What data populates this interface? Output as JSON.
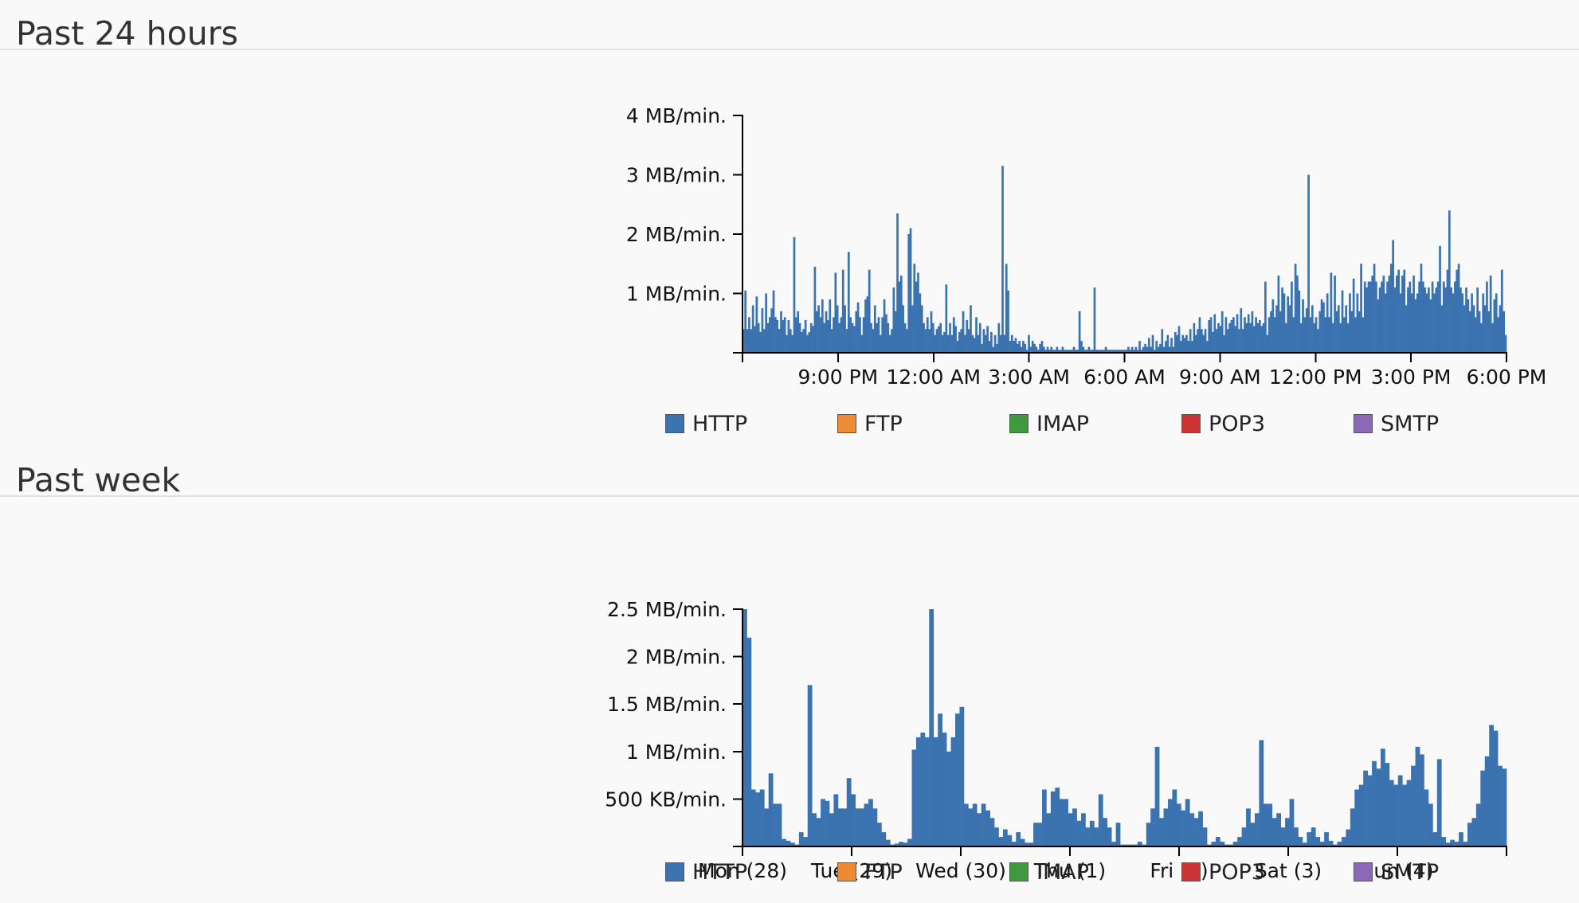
{
  "sections": [
    {
      "title": "Past 24 hours"
    },
    {
      "title": "Past week"
    }
  ],
  "legend": [
    {
      "label": "HTTP",
      "color": "#3a73b0"
    },
    {
      "label": "FTP",
      "color": "#ef8a34"
    },
    {
      "label": "IMAP",
      "color": "#3f9a3d"
    },
    {
      "label": "POP3",
      "color": "#cc3333"
    },
    {
      "label": "SMTP",
      "color": "#8c68b8"
    }
  ],
  "chart_data": [
    {
      "type": "bar",
      "title": "Past 24 hours",
      "xlabel": "",
      "ylabel": "",
      "unit": "MB/min.",
      "ylim": [
        0,
        4
      ],
      "yticks": [
        {
          "value": 1,
          "label": "1 MB/min."
        },
        {
          "value": 2,
          "label": "2 MB/min."
        },
        {
          "value": 3,
          "label": "3 MB/min."
        },
        {
          "value": 4,
          "label": "4 MB/min."
        }
      ],
      "xlim": [
        0,
        24
      ],
      "xticks": [
        {
          "value": 3,
          "label": "9:00 PM"
        },
        {
          "value": 6,
          "label": "12:00 AM"
        },
        {
          "value": 9,
          "label": "3:00 AM"
        },
        {
          "value": 12,
          "label": "6:00 AM"
        },
        {
          "value": 15,
          "label": "9:00 AM"
        },
        {
          "value": 18,
          "label": "12:00 PM"
        },
        {
          "value": 21,
          "label": "3:00 PM"
        },
        {
          "value": 24,
          "label": "6:00 PM"
        }
      ],
      "series": [
        {
          "name": "HTTP",
          "color": "#3a73b0",
          "values": [
            0.4,
            1.05,
            0.4,
            0.6,
            0.4,
            0.8,
            0.45,
            0.95,
            0.5,
            0.35,
            0.75,
            0.4,
            1.0,
            0.5,
            0.6,
            0.75,
            1.05,
            0.6,
            0.55,
            0.4,
            0.7,
            0.55,
            0.6,
            0.3,
            0.55,
            0.4,
            0.3,
            1.95,
            0.6,
            0.7,
            0.5,
            0.35,
            0.4,
            0.55,
            0.3,
            0.35,
            0.5,
            0.45,
            1.45,
            0.7,
            0.8,
            0.6,
            0.9,
            0.5,
            0.7,
            0.55,
            0.9,
            0.4,
            0.6,
            1.35,
            0.8,
            0.5,
            0.6,
            1.4,
            0.8,
            0.4,
            1.7,
            0.6,
            0.5,
            0.45,
            0.7,
            0.85,
            0.6,
            0.3,
            0.6,
            0.9,
            0.95,
            1.4,
            0.5,
            0.4,
            0.8,
            0.5,
            0.6,
            0.3,
            0.6,
            0.9,
            0.65,
            0.5,
            0.3,
            0.4,
            1.1,
            0.7,
            2.35,
            1.2,
            1.3,
            0.8,
            0.5,
            0.4,
            2.0,
            2.1,
            0.8,
            1.5,
            1.2,
            1.35,
            1.0,
            0.8,
            0.5,
            0.4,
            0.6,
            0.4,
            0.7,
            0.5,
            0.3,
            0.4,
            0.45,
            0.5,
            0.3,
            0.35,
            1.15,
            0.3,
            0.5,
            0.3,
            0.6,
            0.45,
            0.2,
            0.35,
            0.4,
            0.7,
            0.3,
            0.55,
            0.4,
            0.8,
            0.3,
            0.25,
            0.6,
            0.3,
            0.5,
            0.15,
            0.4,
            0.3,
            0.45,
            0.2,
            0.35,
            0.1,
            0.3,
            0.15,
            0.5,
            0.3,
            3.15,
            0.3,
            1.5,
            1.05,
            0.2,
            0.3,
            0.2,
            0.25,
            0.15,
            0.2,
            0.1,
            0.2,
            0.15,
            0.05,
            0.3,
            0.1,
            0.2,
            0.15,
            0.1,
            0.05,
            0.15,
            0.2,
            0.1,
            0.05,
            0.1,
            0.05,
            0.1,
            0.05,
            0.05,
            0.1,
            0.05,
            0.05,
            0.1,
            0.05,
            0.05,
            0.05,
            0.05,
            0.05,
            0.1,
            0.05,
            0.05,
            0.7,
            0.2,
            0.1,
            0.05,
            0.05,
            0.1,
            0.05,
            0.05,
            1.1,
            0.05,
            0.05,
            0.05,
            0.05,
            0.05,
            0.1,
            0.05,
            0.05,
            0.05,
            0.05,
            0.05,
            0.05,
            0.05,
            0.05,
            0.05,
            0.05,
            0.05,
            0.1,
            0.05,
            0.1,
            0.05,
            0.1,
            0.05,
            0.2,
            0.05,
            0.1,
            0.15,
            0.1,
            0.25,
            0.1,
            0.3,
            0.05,
            0.2,
            0.1,
            0.15,
            0.4,
            0.1,
            0.2,
            0.3,
            0.1,
            0.25,
            0.1,
            0.35,
            0.3,
            0.45,
            0.2,
            0.3,
            0.25,
            0.3,
            0.2,
            0.4,
            0.2,
            0.5,
            0.3,
            0.4,
            0.6,
            0.4,
            0.3,
            0.4,
            0.2,
            0.55,
            0.6,
            0.35,
            0.65,
            0.4,
            0.5,
            0.45,
            0.7,
            0.3,
            0.6,
            0.4,
            0.5,
            0.55,
            0.6,
            0.45,
            0.65,
            0.4,
            0.75,
            0.4,
            0.6,
            0.5,
            0.65,
            0.5,
            0.7,
            0.45,
            0.6,
            0.5,
            0.55,
            0.45,
            0.5,
            1.2,
            0.3,
            0.6,
            0.7,
            0.9,
            0.6,
            0.8,
            1.3,
            0.7,
            1.1,
            1.0,
            0.5,
            0.95,
            0.8,
            1.2,
            0.6,
            1.5,
            1.3,
            1.05,
            0.5,
            0.9,
            0.6,
            0.75,
            3.0,
            0.6,
            0.8,
            0.5,
            0.6,
            0.4,
            0.7,
            0.9,
            0.85,
            0.6,
            1.0,
            0.6,
            1.35,
            0.5,
            1.3,
            0.7,
            0.8,
            0.5,
            1.05,
            0.6,
            0.8,
            0.5,
            1.0,
            0.7,
            1.25,
            0.6,
            1.0,
            0.7,
            1.5,
            0.6,
            1.2,
            1.1,
            1.2,
            1.2,
            1.3,
            1.5,
            1.2,
            0.9,
            1.1,
            1.2,
            1.3,
            1.0,
            1.2,
            1.3,
            1.5,
            1.9,
            1.1,
            1.3,
            1.4,
            1.0,
            1.3,
            1.4,
            0.8,
            1.1,
            1.2,
            1.0,
            1.3,
            0.9,
            1.0,
            1.2,
            1.5,
            1.2,
            1.1,
            1.0,
            1.1,
            0.9,
            1.2,
            1.0,
            1.1,
            1.2,
            1.8,
            0.8,
            1.2,
            1.1,
            1.4,
            2.4,
            1.1,
            1.0,
            1.2,
            1.4,
            1.5,
            1.1,
            1.0,
            0.8,
            1.1,
            0.9,
            0.7,
            1.0,
            0.8,
            0.6,
            1.1,
            0.7,
            0.5,
            1.0,
            0.8,
            1.2,
            0.7,
            1.3,
            0.5,
            0.9,
            1.0,
            0.6,
            0.8,
            1.4,
            0.7,
            0.3
          ]
        }
      ]
    },
    {
      "type": "bar",
      "title": "Past week",
      "xlabel": "",
      "ylabel": "",
      "unit": "MB/min.",
      "ylim": [
        0,
        2.5
      ],
      "yticks": [
        {
          "value": 0.5,
          "label": "500 KB/min."
        },
        {
          "value": 1,
          "label": "1 MB/min."
        },
        {
          "value": 1.5,
          "label": "1.5 MB/min."
        },
        {
          "value": 2,
          "label": "2 MB/min."
        },
        {
          "value": 2.5,
          "label": "2.5 MB/min."
        }
      ],
      "xlim": [
        0,
        7
      ],
      "xticks": [
        {
          "value": 0,
          "label": "Mon (28)"
        },
        {
          "value": 1,
          "label": "Tue (29)"
        },
        {
          "value": 2,
          "label": "Wed (30)"
        },
        {
          "value": 3,
          "label": "Thu (1)"
        },
        {
          "value": 4,
          "label": "Fri (2)"
        },
        {
          "value": 5,
          "label": "Sat (3)"
        },
        {
          "value": 6,
          "label": "Sun (4)"
        },
        {
          "value": 7,
          "label": ""
        }
      ],
      "series": [
        {
          "name": "HTTP",
          "color": "#3a73b0",
          "values": [
            2.5,
            2.2,
            0.6,
            0.57,
            0.6,
            0.4,
            0.77,
            0.45,
            0.45,
            0.08,
            0.06,
            0.04,
            0.02,
            0.15,
            0.1,
            1.7,
            0.35,
            0.3,
            0.5,
            0.48,
            0.35,
            0.55,
            0.4,
            0.4,
            0.72,
            0.55,
            0.4,
            0.4,
            0.45,
            0.5,
            0.4,
            0.25,
            0.15,
            0.07,
            0.02,
            0.03,
            0.05,
            0.04,
            0.08,
            1.02,
            1.15,
            1.2,
            1.15,
            2.5,
            1.15,
            1.4,
            1.2,
            1.0,
            1.15,
            1.4,
            1.47,
            0.45,
            0.4,
            0.45,
            0.35,
            0.45,
            0.38,
            0.3,
            0.2,
            0.1,
            0.18,
            0.12,
            0.05,
            0.15,
            0.08,
            0.04,
            0.04,
            0.25,
            0.25,
            0.6,
            0.35,
            0.58,
            0.62,
            0.5,
            0.5,
            0.35,
            0.4,
            0.27,
            0.35,
            0.2,
            0.27,
            0.2,
            0.55,
            0.3,
            0.2,
            0.05,
            0.25,
            0.02,
            0.02,
            0.02,
            0.02,
            0.05,
            0.02,
            0.25,
            0.4,
            1.05,
            0.3,
            0.4,
            0.5,
            0.6,
            0.45,
            0.38,
            0.5,
            0.35,
            0.3,
            0.37,
            0.2,
            0.02,
            0.05,
            0.1,
            0.05,
            0.02,
            0.02,
            0.05,
            0.1,
            0.2,
            0.4,
            0.25,
            0.35,
            1.12,
            0.45,
            0.45,
            0.3,
            0.35,
            0.2,
            0.3,
            0.5,
            0.2,
            0.1,
            0.04,
            0.15,
            0.2,
            0.1,
            0.05,
            0.15,
            0.06,
            0.02,
            0.05,
            0.1,
            0.18,
            0.4,
            0.6,
            0.65,
            0.8,
            0.75,
            0.9,
            0.82,
            1.03,
            0.88,
            0.7,
            0.65,
            0.75,
            0.65,
            0.7,
            0.85,
            1.05,
            0.97,
            0.6,
            0.45,
            0.15,
            0.92,
            0.1,
            0.04,
            0.07,
            0.05,
            0.15,
            0.05,
            0.25,
            0.3,
            0.45,
            0.8,
            0.95,
            1.28,
            1.22,
            0.85,
            0.82
          ]
        }
      ]
    }
  ]
}
